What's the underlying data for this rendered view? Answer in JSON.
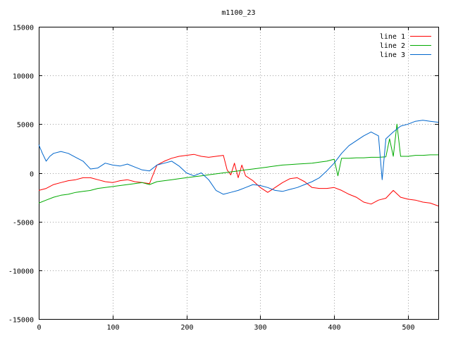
{
  "chart_data": {
    "type": "line",
    "title": "m1100_23",
    "xlabel": "",
    "ylabel": "",
    "xlim": [
      0,
      541
    ],
    "ylim": [
      -15000,
      15000
    ],
    "x_ticks": [
      0,
      100,
      200,
      300,
      400,
      500
    ],
    "y_ticks": [
      -15000,
      -10000,
      -5000,
      0,
      5000,
      10000,
      15000
    ],
    "grid": true,
    "legend_position": "top-right",
    "series": [
      {
        "name": "line 1",
        "color": "#ff0000",
        "x": [
          0,
          10,
          20,
          30,
          40,
          50,
          60,
          70,
          80,
          90,
          100,
          110,
          120,
          130,
          140,
          150,
          160,
          170,
          180,
          190,
          200,
          210,
          220,
          230,
          240,
          250,
          255,
          260,
          265,
          270,
          275,
          280,
          290,
          300,
          310,
          320,
          330,
          340,
          350,
          360,
          370,
          380,
          390,
          400,
          410,
          420,
          430,
          440,
          450,
          460,
          470,
          480,
          490,
          500,
          510,
          520,
          530,
          541
        ],
        "y": [
          -1800,
          -1600,
          -1200,
          -1000,
          -800,
          -700,
          -500,
          -500,
          -700,
          -900,
          -1000,
          -800,
          -700,
          -900,
          -1000,
          -1100,
          800,
          1200,
          1500,
          1700,
          1800,
          1900,
          1700,
          1600,
          1700,
          1800,
          300,
          -200,
          1000,
          -500,
          800,
          -300,
          -800,
          -1500,
          -2000,
          -1500,
          -1000,
          -600,
          -500,
          -900,
          -1500,
          -1600,
          -1600,
          -1500,
          -1800,
          -2200,
          -2500,
          -3000,
          -3200,
          -2800,
          -2600,
          -1800,
          -2500,
          -2700,
          -2800,
          -3000,
          -3100,
          -3400
        ]
      },
      {
        "name": "line 2",
        "color": "#00aa00",
        "x": [
          0,
          10,
          20,
          30,
          40,
          50,
          60,
          70,
          80,
          90,
          100,
          110,
          120,
          130,
          140,
          150,
          160,
          170,
          180,
          190,
          200,
          210,
          220,
          230,
          240,
          250,
          260,
          270,
          280,
          290,
          300,
          310,
          320,
          330,
          340,
          350,
          360,
          370,
          380,
          390,
          400,
          405,
          410,
          420,
          430,
          440,
          450,
          460,
          470,
          475,
          480,
          485,
          490,
          500,
          510,
          520,
          530,
          541
        ],
        "y": [
          -3100,
          -2800,
          -2500,
          -2300,
          -2200,
          -2000,
          -1900,
          -1800,
          -1600,
          -1500,
          -1400,
          -1300,
          -1200,
          -1100,
          -1000,
          -1200,
          -900,
          -800,
          -700,
          -600,
          -500,
          -400,
          -300,
          -200,
          -100,
          0,
          100,
          200,
          300,
          400,
          500,
          600,
          700,
          800,
          850,
          900,
          950,
          1000,
          1100,
          1200,
          1400,
          -300,
          1500,
          1500,
          1550,
          1550,
          1600,
          1600,
          1650,
          3500,
          1700,
          5000,
          1700,
          1700,
          1800,
          1800,
          1850,
          1850
        ]
      },
      {
        "name": "line 3",
        "color": "#0066cc",
        "x": [
          0,
          5,
          10,
          15,
          20,
          30,
          40,
          50,
          60,
          70,
          80,
          90,
          100,
          110,
          120,
          130,
          140,
          150,
          160,
          170,
          180,
          190,
          200,
          210,
          220,
          230,
          240,
          250,
          260,
          270,
          280,
          290,
          300,
          310,
          320,
          330,
          340,
          350,
          360,
          370,
          380,
          390,
          400,
          410,
          420,
          430,
          440,
          450,
          460,
          465,
          470,
          480,
          490,
          500,
          510,
          520,
          530,
          541
        ],
        "y": [
          2900,
          2000,
          1200,
          1700,
          2000,
          2200,
          2000,
          1600,
          1200,
          400,
          500,
          1000,
          800,
          700,
          900,
          600,
          300,
          200,
          800,
          1000,
          1200,
          700,
          0,
          -300,
          0,
          -700,
          -1800,
          -2200,
          -2000,
          -1800,
          -1500,
          -1200,
          -1300,
          -1500,
          -1800,
          -1900,
          -1700,
          -1500,
          -1200,
          -900,
          -500,
          200,
          1000,
          2000,
          2800,
          3300,
          3800,
          4200,
          3800,
          -700,
          3500,
          4200,
          4800,
          5000,
          5300,
          5400,
          5300,
          5200
        ]
      }
    ]
  }
}
